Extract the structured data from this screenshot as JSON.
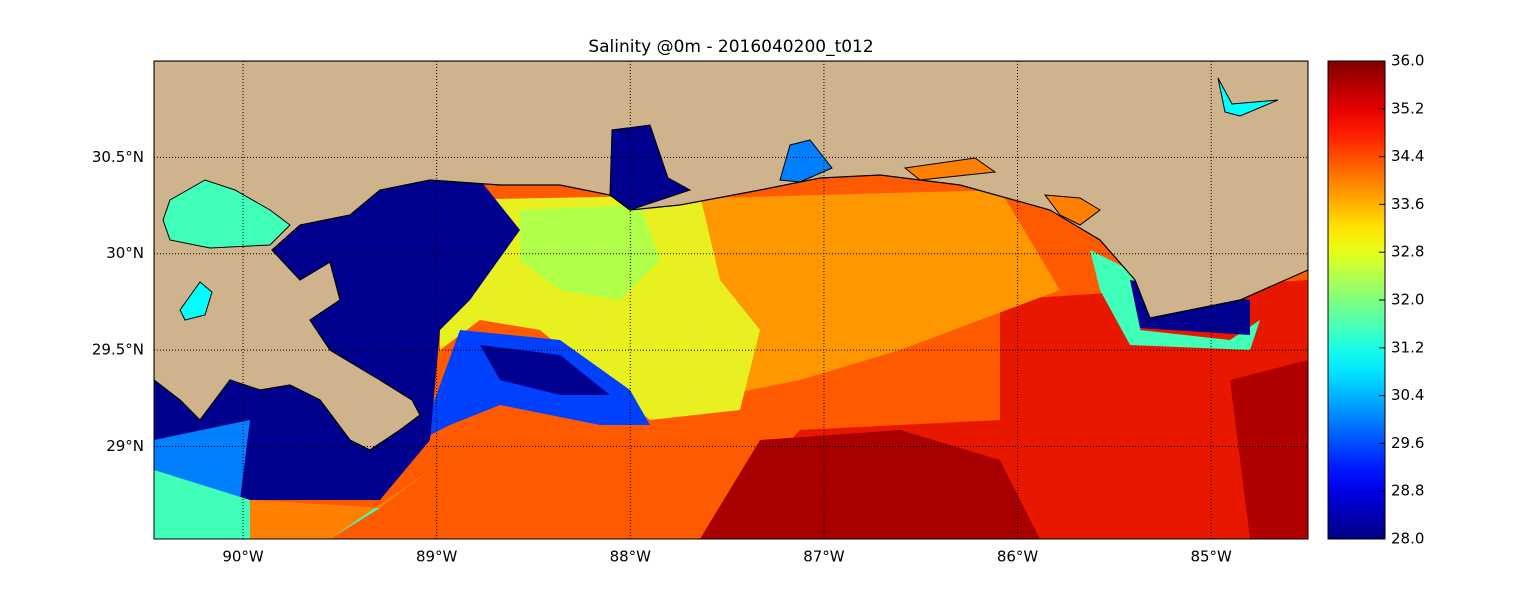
{
  "title": "Salinity @0m - 2016040200_t012",
  "map": {
    "xlim": [
      -90.46,
      -84.5
    ],
    "ylim": [
      28.52,
      31.0
    ],
    "xticks": [
      {
        "value": -90,
        "label": "90°W"
      },
      {
        "value": -89,
        "label": "89°W"
      },
      {
        "value": -88,
        "label": "88°W"
      },
      {
        "value": -87,
        "label": "87°W"
      },
      {
        "value": -86,
        "label": "86°W"
      },
      {
        "value": -85,
        "label": "85°W"
      }
    ],
    "yticks": [
      {
        "value": 29,
        "label": "29°N"
      },
      {
        "value": 29.5,
        "label": "29.5°N"
      },
      {
        "value": 30,
        "label": "30°N"
      },
      {
        "value": 30.5,
        "label": "30.5°N"
      }
    ],
    "grid": true
  },
  "colorbar": {
    "colormap": "jet",
    "lim": [
      28,
      36
    ],
    "ticks": [
      {
        "value": 28,
        "label": "28.0"
      },
      {
        "value": 28.8,
        "label": "28.8"
      },
      {
        "value": 29.6,
        "label": "29.6"
      },
      {
        "value": 30.4,
        "label": "30.4"
      },
      {
        "value": 31.2,
        "label": "31.2"
      },
      {
        "value": 32,
        "label": "32.0"
      },
      {
        "value": 32.8,
        "label": "32.8"
      },
      {
        "value": 33.6,
        "label": "33.6"
      },
      {
        "value": 34.4,
        "label": "34.4"
      },
      {
        "value": 35.2,
        "label": "35.2"
      },
      {
        "value": 36,
        "label": "36.0"
      }
    ]
  }
}
